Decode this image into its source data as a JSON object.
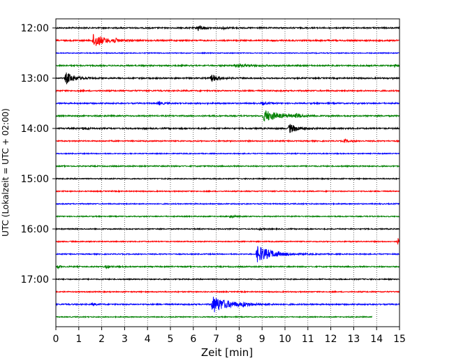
{
  "chart_data": {
    "type": "line",
    "xlabel": "Zeit  [min]",
    "ylabel": "UTC (Lokalzeit = UTC + 02:00)",
    "x_ticks": [
      "0",
      "1",
      "2",
      "3",
      "4",
      "5",
      "6",
      "7",
      "8",
      "9",
      "10",
      "11",
      "12",
      "13",
      "14",
      "15"
    ],
    "xlim": [
      0,
      15
    ],
    "y_ticks": [
      "12:00",
      "13:00",
      "14:00",
      "15:00",
      "16:00",
      "17:00"
    ],
    "trace_interval_min": 15,
    "first_trace": "12:00",
    "grid": "vertical dotted lines at each minute",
    "colors": [
      "#000000",
      "#ff0000",
      "#0000ff",
      "#008000"
    ],
    "traces": [
      {
        "start": "12:00",
        "color": "#000000",
        "noise": 0.28,
        "events": [
          {
            "t": 6.2,
            "amp": 1.4,
            "dur": 0.5
          },
          {
            "t": 7.3,
            "amp": 0.5,
            "dur": 0.4
          }
        ]
      },
      {
        "start": "12:15",
        "color": "#ff0000",
        "noise": 0.3,
        "events": [
          {
            "t": 1.65,
            "amp": 3.4,
            "dur": 0.9
          },
          {
            "t": 2.5,
            "amp": 0.8,
            "dur": 0.6
          }
        ]
      },
      {
        "start": "12:30",
        "color": "#0000ff",
        "noise": 0.18,
        "events": []
      },
      {
        "start": "12:45",
        "color": "#008000",
        "noise": 0.28,
        "events": [
          {
            "t": 7.8,
            "amp": 0.6,
            "dur": 1.5
          },
          {
            "t": 14.8,
            "amp": 0.7,
            "dur": 0.3
          }
        ]
      },
      {
        "start": "13:00",
        "color": "#000000",
        "noise": 0.28,
        "events": [
          {
            "t": 0.45,
            "amp": 2.6,
            "dur": 0.8
          },
          {
            "t": 6.8,
            "amp": 1.6,
            "dur": 0.7
          }
        ]
      },
      {
        "start": "13:15",
        "color": "#ff0000",
        "noise": 0.28,
        "events": []
      },
      {
        "start": "13:30",
        "color": "#0000ff",
        "noise": 0.28,
        "events": [
          {
            "t": 4.5,
            "amp": 0.6,
            "dur": 0.4
          },
          {
            "t": 9.0,
            "amp": 0.6,
            "dur": 0.5
          }
        ]
      },
      {
        "start": "13:45",
        "color": "#008000",
        "noise": 0.28,
        "events": [
          {
            "t": 9.1,
            "amp": 2.6,
            "dur": 1.4
          },
          {
            "t": 10.5,
            "amp": 0.7,
            "dur": 0.6
          }
        ]
      },
      {
        "start": "14:00",
        "color": "#000000",
        "noise": 0.3,
        "events": [
          {
            "t": 10.2,
            "amp": 2.0,
            "dur": 0.8
          },
          {
            "t": 1.2,
            "amp": 0.5,
            "dur": 0.4
          }
        ]
      },
      {
        "start": "14:15",
        "color": "#ff0000",
        "noise": 0.25,
        "events": [
          {
            "t": 12.6,
            "amp": 0.7,
            "dur": 0.4
          }
        ]
      },
      {
        "start": "14:30",
        "color": "#0000ff",
        "noise": 0.2,
        "events": []
      },
      {
        "start": "14:45",
        "color": "#008000",
        "noise": 0.25,
        "events": []
      },
      {
        "start": "15:00",
        "color": "#000000",
        "noise": 0.22,
        "events": []
      },
      {
        "start": "15:15",
        "color": "#ff0000",
        "noise": 0.22,
        "events": []
      },
      {
        "start": "15:30",
        "color": "#0000ff",
        "noise": 0.22,
        "events": []
      },
      {
        "start": "15:45",
        "color": "#008000",
        "noise": 0.22,
        "events": [
          {
            "t": 7.6,
            "amp": 0.6,
            "dur": 0.5
          }
        ]
      },
      {
        "start": "16:00",
        "color": "#000000",
        "noise": 0.22,
        "events": [
          {
            "t": 8.9,
            "amp": 0.4,
            "dur": 0.4
          }
        ]
      },
      {
        "start": "16:15",
        "color": "#ff0000",
        "noise": 0.22,
        "events": [
          {
            "t": 14.95,
            "amp": 1.5,
            "dur": 0.15
          }
        ]
      },
      {
        "start": "16:30",
        "color": "#0000ff",
        "noise": 0.22,
        "events": [
          {
            "t": 8.8,
            "amp": 3.8,
            "dur": 1.4
          }
        ]
      },
      {
        "start": "16:45",
        "color": "#008000",
        "noise": 0.25,
        "events": [
          {
            "t": 2.2,
            "amp": 0.6,
            "dur": 0.4
          },
          {
            "t": 0.1,
            "amp": 0.7,
            "dur": 0.2
          }
        ]
      },
      {
        "start": "17:00",
        "color": "#000000",
        "noise": 0.22,
        "events": []
      },
      {
        "start": "17:15",
        "color": "#ff0000",
        "noise": 0.22,
        "events": []
      },
      {
        "start": "17:30",
        "color": "#0000ff",
        "noise": 0.28,
        "events": [
          {
            "t": 6.85,
            "amp": 3.8,
            "dur": 1.5
          },
          {
            "t": 1.6,
            "amp": 0.6,
            "dur": 0.3
          },
          {
            "t": 8.2,
            "amp": 0.7,
            "dur": 0.3
          }
        ]
      },
      {
        "start": "17:45",
        "color": "#008000",
        "noise": 0.2,
        "events": [],
        "end_t": 13.8
      }
    ]
  }
}
